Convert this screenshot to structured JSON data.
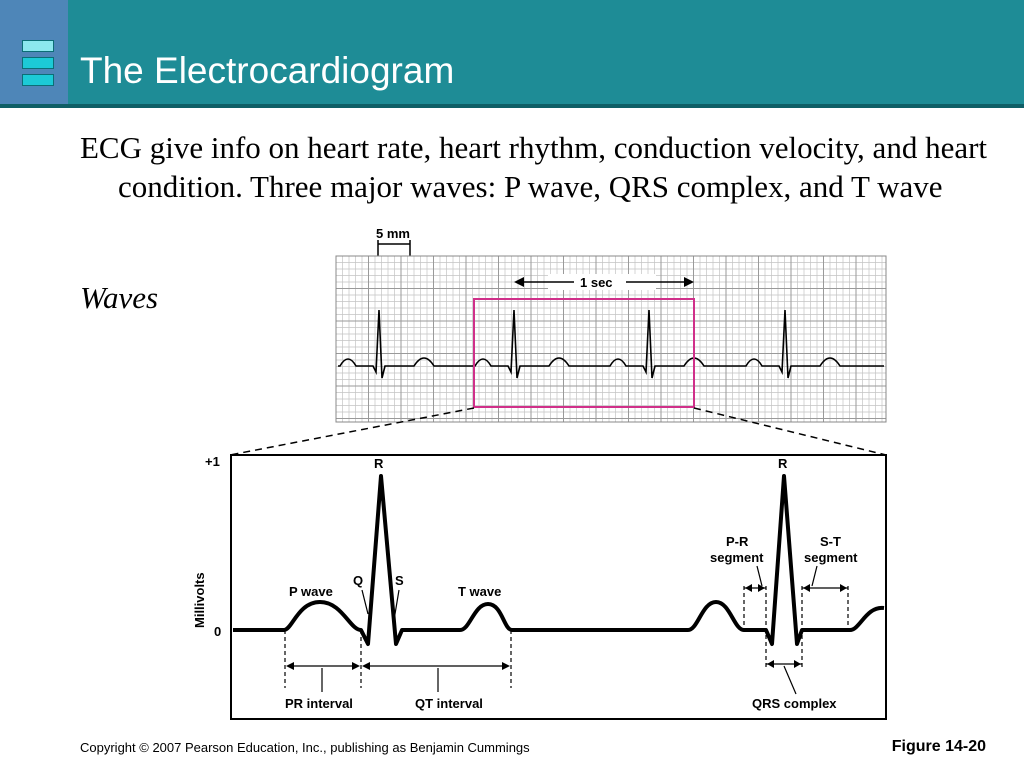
{
  "title": "The Electrocardiogram",
  "bullet": "ECG give info on heart rate, heart rhythm, conduction velocity, and heart condition. Three major waves: P wave, QRS complex, and T wave",
  "waves_label": "Waves",
  "figure": {
    "strip_scale_label": "5 mm",
    "strip_time_label": "1  sec",
    "y_axis_title": "Millivolts",
    "y_tick_top": "+1",
    "y_tick_zero": "0",
    "peak_r_left": "R",
    "peak_r_right": "R",
    "label_q": "Q",
    "label_s": "S",
    "label_p_wave": "P wave",
    "label_t_wave": "T wave",
    "label_pr_segment_line1": "P-R",
    "label_pr_segment_line2": "segment",
    "label_st_segment_line1": "S-T",
    "label_st_segment_line2": "segment",
    "label_pr_interval": "PR interval",
    "label_qt_interval": "QT interval",
    "label_qrs_complex": "QRS complex"
  },
  "footer": {
    "copyright": "Copyright © 2007 Pearson Education, Inc., publishing as Benjamin Cummings",
    "figure_number": "Figure 14-20"
  },
  "colors": {
    "header": "#1e8c96",
    "header_block": "#4e86b8",
    "highlight_box": "#d0308a",
    "grid": "#bdbdbd"
  }
}
